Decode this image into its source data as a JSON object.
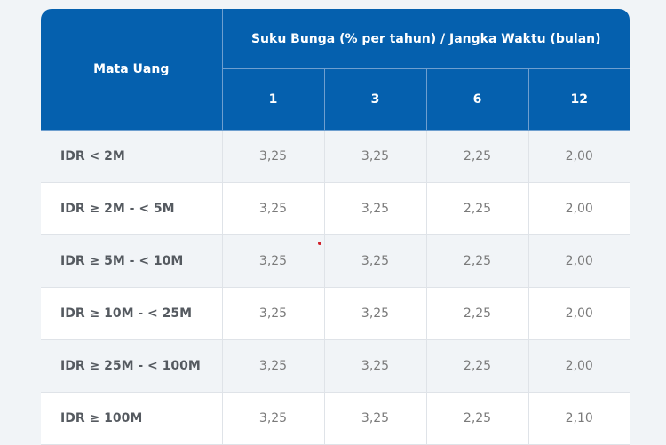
{
  "table": {
    "header": {
      "currency_col": "Mata Uang",
      "group_title": "Suku Bunga (% per tahun) / Jangka Waktu (bulan)",
      "terms": [
        "1",
        "3",
        "6",
        "12"
      ]
    },
    "rows": [
      {
        "label": "IDR < 2M",
        "values": [
          "3,25",
          "3,25",
          "2,25",
          "2,00"
        ]
      },
      {
        "label": "IDR ≥ 2M - < 5M",
        "values": [
          "3,25",
          "3,25",
          "2,25",
          "2,00"
        ]
      },
      {
        "label": "IDR ≥ 5M - < 10M",
        "values": [
          "3,25",
          "3,25",
          "2,25",
          "2,00"
        ]
      },
      {
        "label": "IDR ≥ 10M - < 25M",
        "values": [
          "3,25",
          "3,25",
          "2,25",
          "2,00"
        ]
      },
      {
        "label": "IDR ≥ 25M - < 100M",
        "values": [
          "3,25",
          "3,25",
          "2,25",
          "2,00"
        ]
      },
      {
        "label": "IDR ≥ 100M",
        "values": [
          "3,25",
          "3,25",
          "2,25",
          "2,10"
        ]
      }
    ]
  },
  "colors": {
    "header_bg": "#0560ae",
    "row_alt_bg": "#f1f4f7",
    "row_bg": "#ffffff"
  }
}
